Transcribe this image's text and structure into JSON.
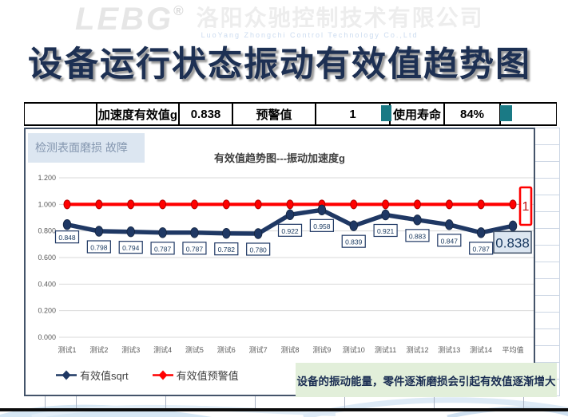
{
  "watermark": {
    "logo": "LEBG",
    "reg": "®",
    "company_cn": "洛阳众驰控制技术有限公司",
    "company_en": "LuoYang Zhongchi Control Technology Co.,Ltd"
  },
  "page_title": "设备运行状态振动有效值趋势图",
  "summary_table": {
    "cells": [
      "加速度有效值g",
      "0.838",
      "预警值",
      "1",
      "使用寿命",
      "84%"
    ]
  },
  "chart": {
    "fault_label": "检测表面磨损 故障",
    "warning_label": "1",
    "avg_label": "0.838",
    "note": "设备的振动能量，零件逐渐磨损会引起有效值逐渐增大"
  },
  "chart_data": {
    "type": "line",
    "title": "有效值趋势图---振动加速度g",
    "categories": [
      "测试1",
      "测试2",
      "测试3",
      "测试4",
      "测试5",
      "测试6",
      "测试7",
      "测试8",
      "测试9",
      "测试10",
      "测试11",
      "测试12",
      "测试13",
      "测试14",
      "平均值"
    ],
    "series": [
      {
        "name": "有效值sqrt",
        "color": "#1f3864",
        "values": [
          0.848,
          0.798,
          0.794,
          0.787,
          0.787,
          0.782,
          0.78,
          0.922,
          0.958,
          0.839,
          0.921,
          0.883,
          0.847,
          0.787,
          0.838
        ]
      },
      {
        "name": "有效值预警值",
        "color": "#ff0000",
        "values": [
          1,
          1,
          1,
          1,
          1,
          1,
          1,
          1,
          1,
          1,
          1,
          1,
          1,
          1,
          1
        ]
      }
    ],
    "ylim": [
      0,
      1.2
    ],
    "yticks": [
      "1.200",
      "1.000",
      "0.800",
      "0.600",
      "0.400",
      "0.200",
      "0.000"
    ],
    "grid": true,
    "legend_position": "bottom-left",
    "colors": {
      "grid": "#d9d9d9",
      "axis_text": "#595959",
      "label_text": "#17375e",
      "label_box_border": "#1f3864",
      "avg_box_fill": "#dce6f1",
      "avg_box_border": "#44546a",
      "warning_box_border": "#ff0000",
      "warning_text": "#c11212",
      "marker_edge_blue": "#14243f",
      "marker_edge_red": "#b30000"
    }
  }
}
